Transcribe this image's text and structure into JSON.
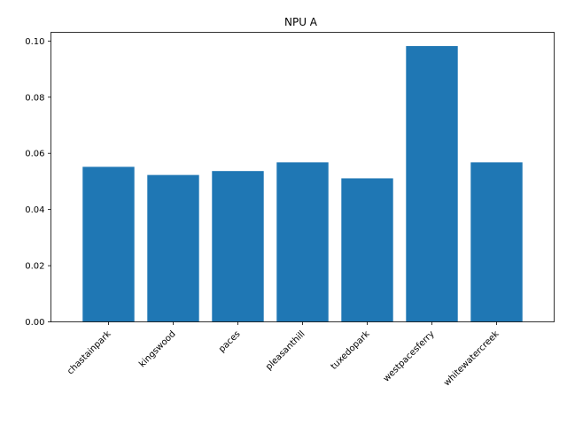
{
  "chart_data": {
    "type": "bar",
    "title": "NPU A",
    "xlabel": "",
    "ylabel": "",
    "categories": [
      "chastainpark",
      "kingswood",
      "paces",
      "pleasanthill",
      "tuxedopark",
      "westpacesferry",
      "whitewatercreek"
    ],
    "values": [
      0.0552,
      0.0523,
      0.0537,
      0.0568,
      0.0511,
      0.0982,
      0.0568
    ],
    "ylim": [
      0,
      0.1031
    ],
    "yticks": [
      0.0,
      0.02,
      0.04,
      0.06,
      0.08,
      0.1
    ],
    "ytick_labels": [
      "0.00",
      "0.02",
      "0.04",
      "0.06",
      "0.08",
      "0.10"
    ],
    "bar_color": "#1f77b4",
    "grid": false,
    "x_tick_rotation": 45
  }
}
